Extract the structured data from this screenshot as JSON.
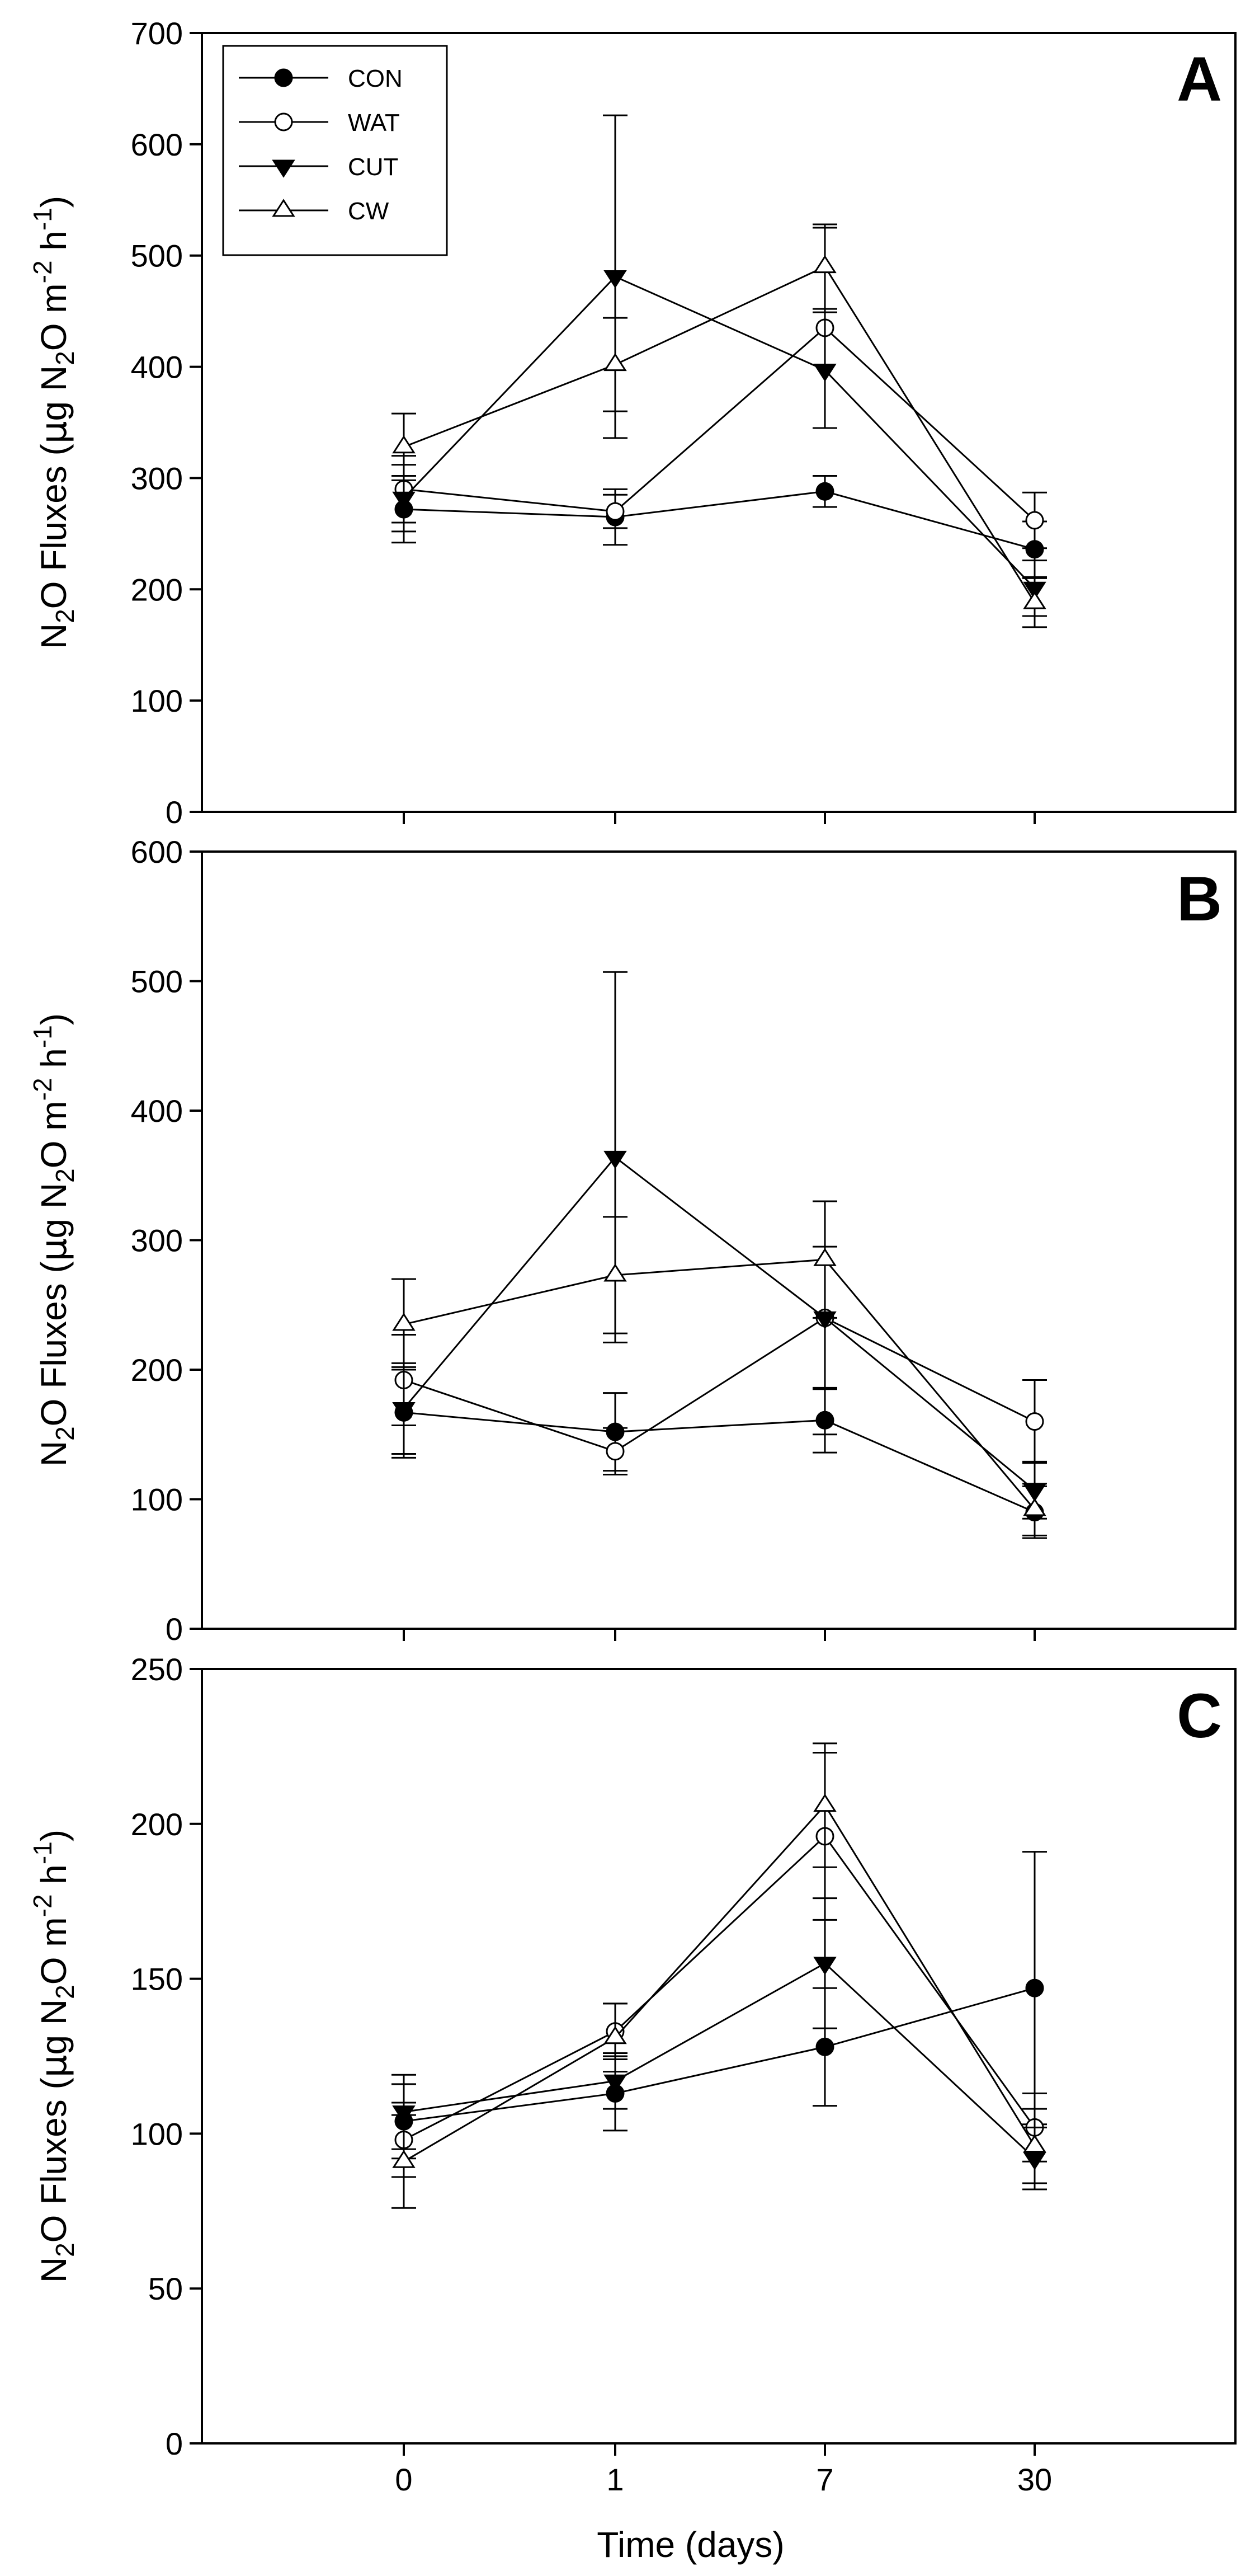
{
  "figure": {
    "x_categories": [
      "0",
      "1",
      "7",
      "30"
    ],
    "x_label": "Time (days)",
    "legend_labels": [
      "CON",
      "WAT",
      "CUT",
      "CW"
    ]
  },
  "ylabel": {
    "prefix": "N",
    "sub2": "2",
    "mid": "O Fluxes (",
    "mu": "μ",
    "g": "g N",
    "sub2b": "2",
    "o": "O m",
    "sup_m2": "-2",
    "h": " h",
    "sup_m1": "-1",
    "close": ")"
  },
  "chart_data": [
    {
      "type": "line",
      "panel": "A",
      "categories": [
        "0",
        "1",
        "7",
        "30"
      ],
      "ylim": [
        0,
        700
      ],
      "yticks": [
        0,
        100,
        200,
        300,
        400,
        500,
        600,
        700
      ],
      "series": [
        {
          "name": "CON",
          "marker": "circle-filled",
          "values": [
            272,
            265,
            288,
            236
          ],
          "errors": [
            30,
            25,
            14,
            25
          ]
        },
        {
          "name": "WAT",
          "marker": "circle-open",
          "values": [
            290,
            270,
            435,
            262
          ],
          "errors": [
            30,
            15,
            90,
            25
          ]
        },
        {
          "name": "CUT",
          "marker": "triangle-down-filled",
          "values": [
            282,
            481,
            397,
            201
          ],
          "errors": [
            30,
            145,
            52,
            25
          ]
        },
        {
          "name": "CW",
          "marker": "triangle-up-open",
          "values": [
            328,
            402,
            490,
            188
          ],
          "errors": [
            30,
            42,
            38,
            22
          ]
        }
      ]
    },
    {
      "type": "line",
      "panel": "B",
      "categories": [
        "0",
        "1",
        "7",
        "30"
      ],
      "ylim": [
        0,
        600
      ],
      "yticks": [
        0,
        100,
        200,
        300,
        400,
        500,
        600
      ],
      "series": [
        {
          "name": "CON",
          "marker": "circle-filled",
          "values": [
            167,
            152,
            161,
            90
          ],
          "errors": [
            35,
            30,
            25,
            20
          ]
        },
        {
          "name": "WAT",
          "marker": "circle-open",
          "values": [
            192,
            137,
            240,
            160
          ],
          "errors": [
            35,
            18,
            90,
            32
          ]
        },
        {
          "name": "CUT",
          "marker": "triangle-down-filled",
          "values": [
            170,
            364,
            240,
            107
          ],
          "errors": [
            35,
            143,
            55,
            22
          ]
        },
        {
          "name": "CW",
          "marker": "triangle-up-open",
          "values": [
            235,
            273,
            285,
            92
          ],
          "errors": [
            35,
            45,
            45,
            20
          ]
        }
      ]
    },
    {
      "type": "line",
      "panel": "C",
      "categories": [
        "0",
        "1",
        "7",
        "30"
      ],
      "ylim": [
        0,
        250
      ],
      "yticks": [
        0,
        50,
        100,
        150,
        200,
        250
      ],
      "series": [
        {
          "name": "CON",
          "marker": "circle-filled",
          "values": [
            104,
            113,
            128,
            147
          ],
          "errors": [
            12,
            12,
            19,
            44
          ]
        },
        {
          "name": "WAT",
          "marker": "circle-open",
          "values": [
            98,
            133,
            196,
            102
          ],
          "errors": [
            12,
            9,
            27,
            11
          ]
        },
        {
          "name": "CUT",
          "marker": "triangle-down-filled",
          "values": [
            107,
            117,
            155,
            92
          ],
          "errors": [
            12,
            9,
            21,
            10
          ]
        },
        {
          "name": "CW",
          "marker": "triangle-up-open",
          "values": [
            91,
            131,
            206,
            96
          ],
          "errors": [
            15,
            11,
            20,
            12
          ]
        }
      ]
    }
  ]
}
